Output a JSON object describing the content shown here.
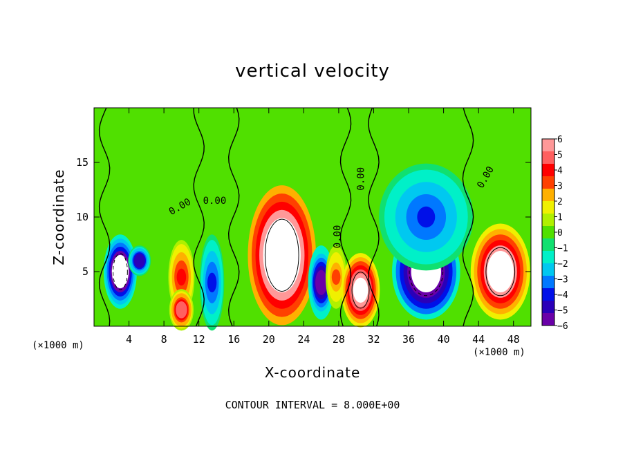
{
  "chart_data": {
    "type": "heatmap",
    "title": "vertical velocity",
    "xlabel": "X-coordinate",
    "ylabel": "Z-coordinate",
    "x_unit_label": "(×1000 m)",
    "x_unit_label_right": "(×1000 m)",
    "xlim": [
      0,
      50
    ],
    "ylim": [
      0,
      20
    ],
    "x_ticks": [
      4,
      8,
      12,
      16,
      20,
      24,
      28,
      32,
      36,
      40,
      44,
      48
    ],
    "y_ticks": [
      5,
      10,
      15
    ],
    "colorbar": {
      "min": -6,
      "max": 6,
      "ticks": [
        6,
        5,
        4,
        3,
        2,
        1,
        0,
        -1,
        -2,
        -3,
        -4,
        -5,
        -6
      ],
      "colors": [
        "#6a00a8",
        "#2a00b8",
        "#0010e8",
        "#0078ff",
        "#00c8f0",
        "#00f0c8",
        "#10e070",
        "#50e000",
        "#b0f000",
        "#f0f000",
        "#ffb000",
        "#ff4000",
        "#ff0000",
        "#ff6060",
        "#ff9898"
      ]
    },
    "contour_labels": [
      {
        "text": "0.00",
        "x": 10,
        "y": 10.7,
        "angle": -30
      },
      {
        "text": "0.00",
        "x": 13.8,
        "y": 11.2,
        "angle": 0
      },
      {
        "text": "0.00",
        "x": 28.2,
        "y": 8.2,
        "angle": -90
      },
      {
        "text": "0.00",
        "x": 30.9,
        "y": 13.5,
        "angle": -90
      },
      {
        "text": "0.00",
        "x": 45.1,
        "y": 13.5,
        "angle": -60
      }
    ],
    "cells": [
      {
        "x": 3,
        "z": 5,
        "rx": 1.5,
        "rz": 3,
        "w": -8
      },
      {
        "x": 5.2,
        "z": 6,
        "rx": 0.9,
        "rz": 1,
        "w": -5
      },
      {
        "x": 10,
        "z": 4.5,
        "rx": 1.1,
        "rz": 3,
        "w": 4
      },
      {
        "x": 10,
        "z": 1.5,
        "rx": 1,
        "rz": 1.5,
        "w": 5
      },
      {
        "x": 13.5,
        "z": 4,
        "rx": 1,
        "rz": 4,
        "w": -4
      },
      {
        "x": 21.5,
        "z": 6.5,
        "rx": 3.5,
        "rz": 6,
        "w": 10
      },
      {
        "x": 26,
        "z": 4,
        "rx": 1.1,
        "rz": 3,
        "w": -6
      },
      {
        "x": 27.7,
        "z": 4.5,
        "rx": 0.8,
        "rz": 2.5,
        "w": 3
      },
      {
        "x": 30.5,
        "z": 3.3,
        "rx": 1.8,
        "rz": 3,
        "w": 7
      },
      {
        "x": 38,
        "z": 5,
        "rx": 3.5,
        "rz": 4,
        "w": -9
      },
      {
        "x": 38,
        "z": 10,
        "rx": 5,
        "rz": 4.5,
        "w": -4
      },
      {
        "x": 46.5,
        "z": 5,
        "rx": 3,
        "rz": 4,
        "w": 8
      }
    ]
  },
  "footer": "CONTOUR INTERVAL = 8.000E+00"
}
